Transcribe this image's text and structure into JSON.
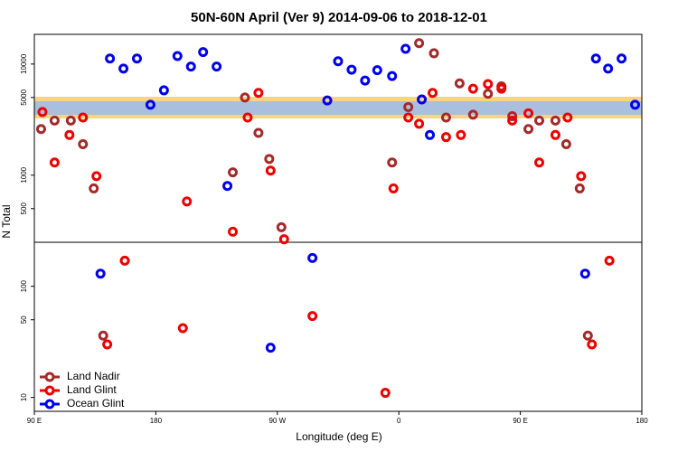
{
  "chart_data": {
    "type": "scatter",
    "title": "50N-60N April (Ver 9)   2014-09-06 to 2018-12-01",
    "xlabel": "Longitude (deg E)",
    "ylabel": "N Total",
    "log_y": true,
    "legend": "lower left",
    "xlim": [
      90,
      540
    ],
    "ylim": [
      7.5,
      18500
    ],
    "xticks": [
      {
        "value": 90,
        "label": "90 E"
      },
      180,
      {
        "value": 270,
        "label": "90 W"
      },
      {
        "value": 360,
        "label": "0"
      },
      {
        "value": 450,
        "label": "90 E"
      },
      {
        "value": 540,
        "label": "180"
      }
    ],
    "yticks": [
      10,
      50,
      100,
      500,
      1000,
      5000,
      10000
    ],
    "series": [
      {
        "name": "Land Nadir",
        "color": "#a52a2a",
        "x": [
          95,
          105,
          117,
          126,
          134,
          141,
          237,
          246,
          256,
          264,
          273,
          355,
          367,
          375,
          386,
          395,
          405,
          415,
          426,
          436,
          444,
          456,
          464,
          476,
          484,
          494,
          500
        ],
        "values": [
          2600,
          3100,
          3100,
          1900,
          760,
          36,
          1060,
          5000,
          2400,
          1400,
          340,
          1300,
          4100,
          15400,
          12500,
          3300,
          6700,
          3500,
          5400,
          6300,
          3400,
          2600,
          3100,
          3100,
          1900,
          760,
          36
        ]
      },
      {
        "name": "Land Glint",
        "color": "#ee0000",
        "x": [
          96,
          105,
          116,
          126,
          136,
          144,
          157,
          200,
          203,
          237,
          248,
          256,
          265,
          275,
          296,
          350,
          356,
          367,
          375,
          385,
          395,
          406,
          415,
          426,
          436,
          444,
          456,
          464,
          476,
          485,
          495,
          503,
          516
        ],
        "values": [
          3700,
          1300,
          2300,
          3300,
          980,
          30,
          170,
          42,
          580,
          310,
          3300,
          5500,
          1100,
          265,
          54,
          11,
          760,
          3300,
          2900,
          5500,
          2200,
          2300,
          6000,
          6600,
          6000,
          3100,
          3600,
          1300,
          2300,
          3300,
          980,
          30,
          170
        ]
      },
      {
        "name": "Ocean Glint",
        "color": "#0000ee",
        "x": [
          139,
          146,
          156,
          166,
          176,
          186,
          196,
          206,
          215,
          225,
          233,
          265,
          296,
          307,
          315,
          325,
          335,
          344,
          355,
          365,
          377,
          383,
          498,
          506,
          515,
          525,
          535
        ],
        "values": [
          130,
          11200,
          9100,
          11200,
          4300,
          5800,
          11800,
          9500,
          12800,
          9500,
          800,
          28,
          180,
          4700,
          10600,
          8900,
          7100,
          8800,
          7800,
          13700,
          4800,
          2300,
          130,
          11200,
          9100,
          11200,
          4300
        ]
      }
    ]
  }
}
